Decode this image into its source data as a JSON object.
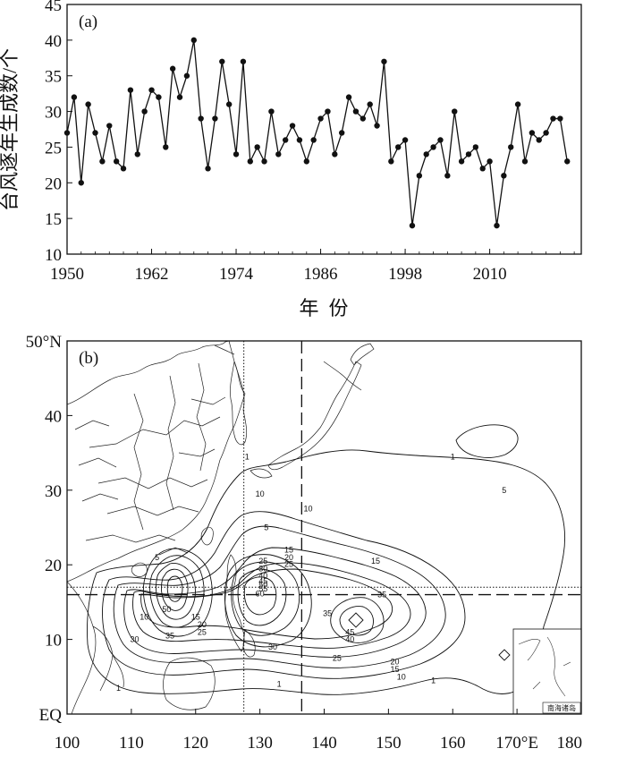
{
  "colors": {
    "ink": "#111111",
    "background": "#ffffff"
  },
  "panel_a": {
    "tag": "(a)",
    "ylabel": "台风逐年生成数/个",
    "xlabel": "年  份"
  },
  "panel_b": {
    "tag": "(b)",
    "inset_label": "南海诸岛"
  },
  "chart_data": [
    {
      "type": "line",
      "panel": "a",
      "title": "",
      "xlabel": "年  份",
      "ylabel": "台风逐年生成数/个",
      "xlim": [
        1950,
        2023
      ],
      "ylim": [
        10,
        45
      ],
      "xticks": [
        1950,
        1962,
        1974,
        1986,
        1998,
        2010
      ],
      "yticks": [
        10,
        15,
        20,
        25,
        30,
        35,
        40,
        45
      ],
      "grid": false,
      "marker": "filled-circle",
      "x": [
        1950,
        1951,
        1952,
        1953,
        1954,
        1955,
        1956,
        1957,
        1958,
        1959,
        1960,
        1961,
        1962,
        1963,
        1964,
        1965,
        1966,
        1967,
        1968,
        1969,
        1970,
        1971,
        1972,
        1973,
        1974,
        1975,
        1976,
        1977,
        1978,
        1979,
        1980,
        1981,
        1982,
        1983,
        1984,
        1985,
        1986,
        1987,
        1988,
        1989,
        1990,
        1991,
        1992,
        1993,
        1994,
        1995,
        1996,
        1997,
        1998,
        1999,
        2000,
        2001,
        2002,
        2003,
        2004,
        2005,
        2006,
        2007,
        2008,
        2009,
        2010,
        2011,
        2012,
        2013,
        2014,
        2015,
        2016,
        2017,
        2018,
        2019,
        2020,
        2021,
        2022
      ],
      "y": [
        27,
        32,
        20,
        31,
        27,
        23,
        28,
        23,
        22,
        33,
        24,
        30,
        33,
        32,
        25,
        36,
        32,
        35,
        40,
        29,
        22,
        29,
        37,
        31,
        24,
        37,
        23,
        25,
        23,
        30,
        24,
        26,
        28,
        26,
        23,
        26,
        29,
        30,
        24,
        27,
        32,
        30,
        29,
        31,
        28,
        37,
        23,
        25,
        26,
        14,
        21,
        24,
        25,
        26,
        21,
        30,
        23,
        24,
        25,
        22,
        23,
        14,
        21,
        25,
        31,
        23,
        27,
        26,
        27,
        29,
        29,
        23,
        null
      ]
    },
    {
      "type": "contour",
      "panel": "b",
      "title": "",
      "xlim": [
        100,
        180
      ],
      "ylim": [
        0,
        50
      ],
      "xticks": [
        100,
        110,
        120,
        130,
        140,
        150,
        160,
        170,
        180
      ],
      "xtick_labels": [
        "100",
        "110",
        "120",
        "130",
        "140",
        "150",
        "160",
        "170°E",
        "180"
      ],
      "yticks": [
        0,
        10,
        20,
        30,
        40,
        50
      ],
      "ytick_labels": [
        "EQ",
        "10",
        "20",
        "30",
        "40",
        "50°N"
      ],
      "contour_levels_labeled": [
        "1",
        "5",
        "10",
        "15",
        "20",
        "25",
        "30",
        "35",
        "40",
        "45",
        "50",
        "55",
        "60"
      ],
      "reference_lines": [
        {
          "orientation": "vertical",
          "value": 127.5,
          "style": "dotted"
        },
        {
          "orientation": "vertical",
          "value": 136.5,
          "style": "dashed"
        },
        {
          "orientation": "horizontal",
          "value": 17,
          "style": "dotted"
        },
        {
          "orientation": "horizontal",
          "value": 16,
          "style": "dashed"
        }
      ],
      "contour_labels": [
        {
          "text": "1",
          "lon": 128,
          "lat": 34.5
        },
        {
          "text": "1",
          "lon": 160,
          "lat": 34.5
        },
        {
          "text": "1",
          "lon": 108,
          "lat": 3.5
        },
        {
          "text": "1",
          "lon": 133,
          "lat": 4
        },
        {
          "text": "1",
          "lon": 157,
          "lat": 4.5
        },
        {
          "text": "5",
          "lon": 114,
          "lat": 21
        },
        {
          "text": "5",
          "lon": 131,
          "lat": 25
        },
        {
          "text": "5",
          "lon": 168,
          "lat": 30
        },
        {
          "text": "10",
          "lon": 130,
          "lat": 29.5
        },
        {
          "text": "10",
          "lon": 137.5,
          "lat": 27.5
        },
        {
          "text": "10",
          "lon": 112,
          "lat": 13
        },
        {
          "text": "10",
          "lon": 152,
          "lat": 5
        },
        {
          "text": "15",
          "lon": 134.5,
          "lat": 22
        },
        {
          "text": "15",
          "lon": 148,
          "lat": 20.5
        },
        {
          "text": "15",
          "lon": 120,
          "lat": 13
        },
        {
          "text": "15",
          "lon": 151,
          "lat": 6
        },
        {
          "text": "20",
          "lon": 134.5,
          "lat": 21
        },
        {
          "text": "20",
          "lon": 121,
          "lat": 12
        },
        {
          "text": "20",
          "lon": 151,
          "lat": 7
        },
        {
          "text": "25",
          "lon": 130.5,
          "lat": 20.5
        },
        {
          "text": "25",
          "lon": 134.5,
          "lat": 20.1
        },
        {
          "text": "25",
          "lon": 121,
          "lat": 11
        },
        {
          "text": "25",
          "lon": 142,
          "lat": 7.5
        },
        {
          "text": "30",
          "lon": 130.5,
          "lat": 19.5
        },
        {
          "text": "30",
          "lon": 110.5,
          "lat": 10
        },
        {
          "text": "30",
          "lon": 132,
          "lat": 9
        },
        {
          "text": "35",
          "lon": 116,
          "lat": 10.5
        },
        {
          "text": "35",
          "lon": 140.5,
          "lat": 13.5
        },
        {
          "text": "35",
          "lon": 149,
          "lat": 16
        },
        {
          "text": "40",
          "lon": 130.5,
          "lat": 18.5
        },
        {
          "text": "40",
          "lon": 144,
          "lat": 10
        },
        {
          "text": "45",
          "lon": 130.5,
          "lat": 17.8
        },
        {
          "text": "45",
          "lon": 144,
          "lat": 11
        },
        {
          "text": "50",
          "lon": 130.5,
          "lat": 17.3
        },
        {
          "text": "50",
          "lon": 115.5,
          "lat": 14
        },
        {
          "text": "55",
          "lon": 130.5,
          "lat": 16.8
        },
        {
          "text": "60",
          "lon": 130,
          "lat": 16.1
        }
      ]
    }
  ]
}
